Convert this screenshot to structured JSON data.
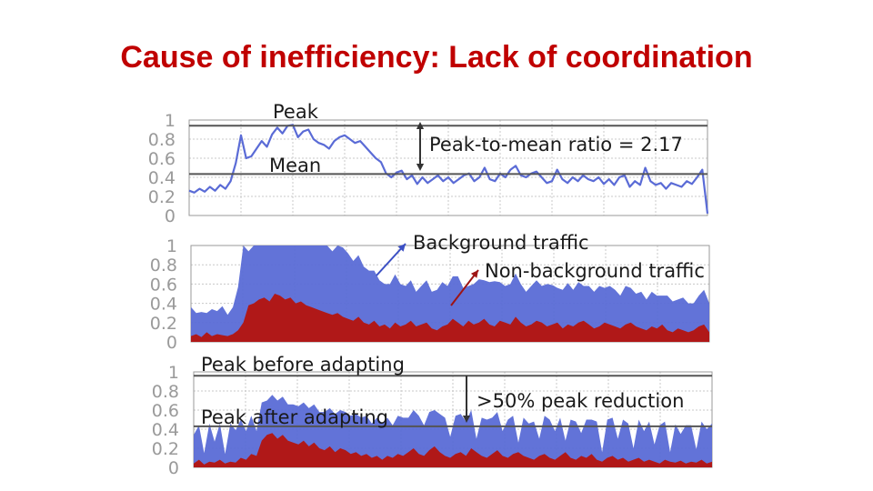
{
  "slide": {
    "title": "Cause of inefficiency: Lack of coordination"
  },
  "colors": {
    "title": "#c00000",
    "blue": "#5a6bd6",
    "red": "#b01818",
    "grid": "#c8c8c8",
    "tick": "#9a9a9a"
  },
  "chart_data": [
    {
      "type": "line",
      "ylim": [
        0,
        1
      ],
      "yticks": [
        "0",
        "0.2",
        "0.4",
        "0.6",
        "0.8",
        "1"
      ],
      "grid": true,
      "series": [
        {
          "values": [
            0.26,
            0.24,
            0.28,
            0.25,
            0.3,
            0.26,
            0.32,
            0.28,
            0.36,
            0.55,
            0.84,
            0.6,
            0.62,
            0.7,
            0.78,
            0.72,
            0.85,
            0.92,
            0.86,
            0.94,
            0.95,
            0.82,
            0.88,
            0.9,
            0.8,
            0.76,
            0.74,
            0.7,
            0.78,
            0.82,
            0.84,
            0.8,
            0.76,
            0.78,
            0.72,
            0.66,
            0.6,
            0.56,
            0.44,
            0.4,
            0.45,
            0.47,
            0.38,
            0.42,
            0.33,
            0.4,
            0.34,
            0.38,
            0.42,
            0.36,
            0.4,
            0.34,
            0.38,
            0.42,
            0.44,
            0.36,
            0.4,
            0.5,
            0.38,
            0.36,
            0.44,
            0.4,
            0.48,
            0.52,
            0.42,
            0.4,
            0.44,
            0.46,
            0.4,
            0.34,
            0.36,
            0.48,
            0.38,
            0.34,
            0.4,
            0.36,
            0.42,
            0.38,
            0.36,
            0.4,
            0.33,
            0.38,
            0.32,
            0.4,
            0.42,
            0.3,
            0.36,
            0.32,
            0.5,
            0.36,
            0.32,
            0.34,
            0.28,
            0.34,
            0.32,
            0.3,
            0.36,
            0.33,
            0.4,
            0.48,
            0.02
          ]
        }
      ],
      "annotations": {
        "peak": "Peak",
        "mean": "Mean",
        "ratio": "Peak-to-mean ratio = 2.17"
      },
      "reference_lines": {
        "peak": 0.94,
        "mean": 0.434
      }
    },
    {
      "type": "area",
      "ylim": [
        0,
        1
      ],
      "yticks": [
        "0",
        "0.2",
        "0.4",
        "0.6",
        "0.8",
        "1"
      ],
      "grid": true,
      "series": [
        {
          "name": "Background traffic",
          "values": [
            0.3,
            0.22,
            0.26,
            0.2,
            0.28,
            0.24,
            0.3,
            0.22,
            0.28,
            0.45,
            0.8,
            0.56,
            0.62,
            0.72,
            0.84,
            0.76,
            0.86,
            0.92,
            0.82,
            0.9,
            0.88,
            0.8,
            0.84,
            0.78,
            0.82,
            0.74,
            0.7,
            0.66,
            0.7,
            0.72,
            0.68,
            0.62,
            0.64,
            0.58,
            0.56,
            0.52,
            0.48,
            0.42,
            0.46,
            0.5,
            0.44,
            0.4,
            0.42,
            0.36,
            0.4,
            0.44,
            0.38,
            0.42,
            0.46,
            0.4,
            0.44,
            0.48,
            0.4,
            0.36,
            0.42,
            0.45,
            0.4,
            0.44,
            0.47,
            0.4,
            0.38,
            0.42,
            0.45,
            0.4,
            0.36,
            0.4,
            0.42,
            0.38,
            0.44,
            0.41,
            0.36,
            0.4,
            0.43,
            0.38,
            0.42,
            0.36,
            0.4,
            0.38,
            0.42,
            0.36,
            0.4,
            0.38,
            0.34,
            0.4,
            0.36,
            0.34,
            0.38,
            0.32,
            0.36,
            0.34,
            0.3,
            0.36,
            0.32,
            0.3,
            0.34,
            0.3,
            0.28,
            0.32,
            0.36,
            0.3
          ]
        },
        {
          "name": "Non-background traffic",
          "values": [
            0.06,
            0.08,
            0.05,
            0.1,
            0.06,
            0.08,
            0.07,
            0.06,
            0.08,
            0.12,
            0.2,
            0.38,
            0.4,
            0.44,
            0.46,
            0.42,
            0.5,
            0.48,
            0.44,
            0.46,
            0.4,
            0.42,
            0.38,
            0.36,
            0.34,
            0.32,
            0.3,
            0.28,
            0.3,
            0.26,
            0.24,
            0.22,
            0.26,
            0.2,
            0.18,
            0.22,
            0.16,
            0.18,
            0.14,
            0.2,
            0.16,
            0.18,
            0.22,
            0.16,
            0.18,
            0.2,
            0.14,
            0.12,
            0.16,
            0.18,
            0.24,
            0.2,
            0.16,
            0.22,
            0.18,
            0.2,
            0.24,
            0.18,
            0.16,
            0.22,
            0.2,
            0.18,
            0.26,
            0.2,
            0.16,
            0.18,
            0.22,
            0.2,
            0.16,
            0.18,
            0.2,
            0.14,
            0.18,
            0.16,
            0.2,
            0.22,
            0.18,
            0.14,
            0.16,
            0.2,
            0.18,
            0.16,
            0.14,
            0.18,
            0.2,
            0.16,
            0.14,
            0.12,
            0.16,
            0.14,
            0.18,
            0.12,
            0.1,
            0.14,
            0.12,
            0.1,
            0.12,
            0.16,
            0.18,
            0.1
          ]
        }
      ],
      "annotations": {
        "background": "Background traffic",
        "non_background": "Non-background traffic"
      }
    },
    {
      "type": "area",
      "ylim": [
        0,
        1
      ],
      "yticks": [
        "0",
        "0.2",
        "0.4",
        "0.6",
        "0.8",
        "1"
      ],
      "grid": true,
      "series": [
        {
          "name": "Background traffic",
          "values": [
            0.3,
            0.36,
            0.12,
            0.4,
            0.22,
            0.38,
            0.1,
            0.4,
            0.34,
            0.4,
            0.3,
            0.4,
            0.26,
            0.4,
            0.36,
            0.4,
            0.4,
            0.4,
            0.38,
            0.4,
            0.4,
            0.4,
            0.4,
            0.4,
            0.38,
            0.4,
            0.4,
            0.4,
            0.4,
            0.4,
            0.4,
            0.4,
            0.4,
            0.4,
            0.36,
            0.4,
            0.38,
            0.4,
            0.34,
            0.4,
            0.4,
            0.36,
            0.4,
            0.4,
            0.32,
            0.4,
            0.38,
            0.4,
            0.4,
            0.22,
            0.4,
            0.4,
            0.36,
            0.4,
            0.14,
            0.4,
            0.4,
            0.38,
            0.4,
            0.26,
            0.4,
            0.4,
            0.1,
            0.4,
            0.36,
            0.4,
            0.18,
            0.4,
            0.4,
            0.3,
            0.4,
            0.12,
            0.4,
            0.4,
            0.24,
            0.4,
            0.36,
            0.4,
            0.1,
            0.4,
            0.4,
            0.22,
            0.4,
            0.4,
            0.12,
            0.4,
            0.32,
            0.4,
            0.18,
            0.4,
            0.4,
            0.1,
            0.4,
            0.28,
            0.4,
            0.38,
            0.14,
            0.4,
            0.36,
            0.4
          ]
        },
        {
          "name": "Non-background traffic",
          "values": [
            0.04,
            0.08,
            0.03,
            0.06,
            0.05,
            0.08,
            0.04,
            0.06,
            0.05,
            0.1,
            0.08,
            0.14,
            0.12,
            0.28,
            0.34,
            0.36,
            0.3,
            0.34,
            0.28,
            0.26,
            0.24,
            0.28,
            0.22,
            0.26,
            0.2,
            0.18,
            0.22,
            0.16,
            0.2,
            0.18,
            0.14,
            0.16,
            0.12,
            0.14,
            0.1,
            0.12,
            0.08,
            0.12,
            0.1,
            0.14,
            0.12,
            0.16,
            0.2,
            0.14,
            0.12,
            0.18,
            0.22,
            0.16,
            0.12,
            0.1,
            0.14,
            0.16,
            0.12,
            0.2,
            0.16,
            0.12,
            0.1,
            0.14,
            0.18,
            0.12,
            0.1,
            0.14,
            0.16,
            0.12,
            0.1,
            0.08,
            0.12,
            0.14,
            0.1,
            0.08,
            0.12,
            0.16,
            0.1,
            0.08,
            0.12,
            0.1,
            0.14,
            0.08,
            0.06,
            0.1,
            0.12,
            0.08,
            0.1,
            0.06,
            0.08,
            0.1,
            0.06,
            0.08,
            0.06,
            0.04,
            0.08,
            0.06,
            0.05,
            0.07,
            0.04,
            0.06,
            0.05,
            0.08,
            0.04,
            0.06
          ]
        }
      ],
      "annotations": {
        "before": "Peak before adapting",
        "after": "Peak after adapting",
        "reduction": ">50% peak reduction"
      },
      "reference_lines": {
        "peak_before": 0.96,
        "peak_after": 0.43
      }
    }
  ]
}
